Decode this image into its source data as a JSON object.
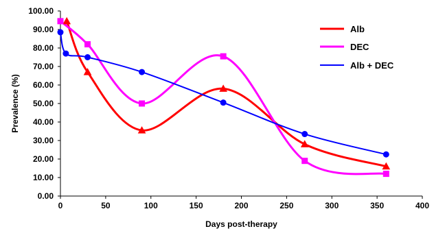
{
  "chart_data": {
    "type": "line",
    "xlabel": "Days post-therapy",
    "ylabel": "Prevalence (%)",
    "xlim": [
      0,
      400
    ],
    "ylim": [
      0,
      100
    ],
    "x_ticks": [
      "0",
      "50",
      "100",
      "150",
      "200",
      "250",
      "300",
      "350",
      "400"
    ],
    "y_ticks": [
      "0.00",
      "10.00",
      "20.00",
      "30.00",
      "40.00",
      "50.00",
      "60.00",
      "70.00",
      "80.00",
      "90.00",
      "100.00"
    ],
    "grid": false,
    "legend_position": "top-right",
    "series": [
      {
        "name": "Alb",
        "color": "#ff0000",
        "marker": "triangle",
        "x": [
          7,
          30,
          90,
          180,
          270,
          360
        ],
        "y": [
          94.5,
          67,
          35.5,
          58,
          28,
          16
        ]
      },
      {
        "name": "DEC",
        "color": "#ff00ff",
        "marker": "square",
        "x": [
          0,
          30,
          90,
          180,
          270,
          360
        ],
        "y": [
          94.5,
          82,
          50,
          75.5,
          19,
          12
        ]
      },
      {
        "name": "Alb + DEC",
        "color": "#0000ff",
        "marker": "circle",
        "x": [
          0,
          6,
          30,
          90,
          180,
          270,
          360
        ],
        "y": [
          88.5,
          77,
          75,
          67,
          50.5,
          33.5,
          22.5
        ]
      }
    ]
  }
}
